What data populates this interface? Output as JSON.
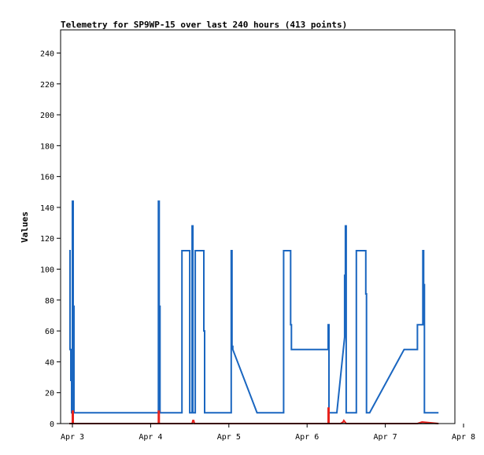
{
  "chart_data": {
    "type": "line",
    "title": "Telemetry for SP9WP-15 over last 240 hours (413 points)",
    "xlabel": "",
    "ylabel": "Values",
    "ylim": [
      0,
      255
    ],
    "xlim": [
      0,
      5
    ],
    "x_ticks": [
      {
        "value": 0,
        "label": "Apr 3"
      },
      {
        "value": 1,
        "label": "Apr 4"
      },
      {
        "value": 2,
        "label": "Apr 5"
      },
      {
        "value": 3,
        "label": "Apr 6"
      },
      {
        "value": 4,
        "label": "Apr 7"
      },
      {
        "value": 5,
        "label": "Apr 8"
      }
    ],
    "y_ticks": [
      0,
      20,
      40,
      60,
      80,
      100,
      120,
      140,
      160,
      180,
      200,
      220,
      240
    ],
    "grid": false,
    "legend": "none",
    "series": [
      {
        "color": "#1a66c0",
        "x": [
          -0.04,
          -0.03,
          -0.03,
          -0.02,
          -0.02,
          -0.01,
          -0.01,
          0.0,
          0.0,
          0.01,
          0.01,
          0.02,
          0.02,
          0.03,
          0.03,
          1.1,
          1.1,
          1.11,
          1.11,
          1.12,
          1.12,
          1.4,
          1.4,
          1.5,
          1.5,
          1.53,
          1.53,
          1.54,
          1.54,
          1.56,
          1.56,
          1.57,
          1.57,
          1.68,
          1.68,
          1.69,
          1.69,
          1.7,
          1.7,
          2.03,
          2.03,
          2.04,
          2.04,
          2.05,
          2.05,
          2.36,
          2.7,
          2.7,
          2.79,
          2.79,
          2.8,
          2.8,
          2.82,
          2.82,
          3.27,
          3.27,
          3.28,
          3.28,
          3.38,
          3.48,
          3.48,
          3.49,
          3.49,
          3.5,
          3.5,
          3.52,
          3.52,
          3.63,
          3.63,
          3.67,
          3.67,
          3.75,
          3.75,
          3.76,
          3.76,
          3.8,
          4.24,
          4.41,
          4.41,
          4.48,
          4.48,
          4.49,
          4.49,
          4.5,
          4.5,
          4.68
        ],
        "values": [
          112,
          112,
          48,
          48,
          28,
          28,
          7,
          7,
          144,
          144,
          76,
          76,
          7,
          7,
          7,
          7,
          144,
          144,
          76,
          76,
          7,
          7,
          112,
          112,
          7,
          7,
          128,
          128,
          7,
          7,
          7,
          7,
          112,
          112,
          60,
          60,
          7,
          7,
          7,
          7,
          112,
          112,
          50,
          50,
          48,
          7,
          7,
          112,
          112,
          64,
          64,
          48,
          48,
          48,
          48,
          64,
          64,
          7,
          7,
          56,
          96,
          96,
          128,
          128,
          7,
          7,
          7,
          7,
          112,
          112,
          112,
          112,
          84,
          84,
          7,
          7,
          48,
          48,
          64,
          64,
          112,
          112,
          90,
          90,
          7,
          7
        ]
      },
      {
        "color": "#e8221c",
        "x": [
          -0.04,
          0.0,
          0.0,
          0.01,
          0.01,
          1.1,
          1.1,
          1.11,
          1.11,
          1.53,
          1.54,
          1.55,
          1.56,
          3.27,
          3.27,
          3.28,
          3.28,
          3.43,
          3.46,
          3.47,
          3.5,
          4.41,
          4.47,
          4.68
        ],
        "values": [
          0,
          0,
          8,
          8,
          0,
          0,
          8,
          8,
          0,
          0,
          2,
          2,
          0,
          0,
          10,
          10,
          0,
          0,
          1,
          2,
          0,
          0,
          1,
          0
        ]
      },
      {
        "color": "#000000",
        "x": [
          -0.04,
          4.68
        ],
        "values": [
          0,
          0
        ]
      }
    ]
  }
}
